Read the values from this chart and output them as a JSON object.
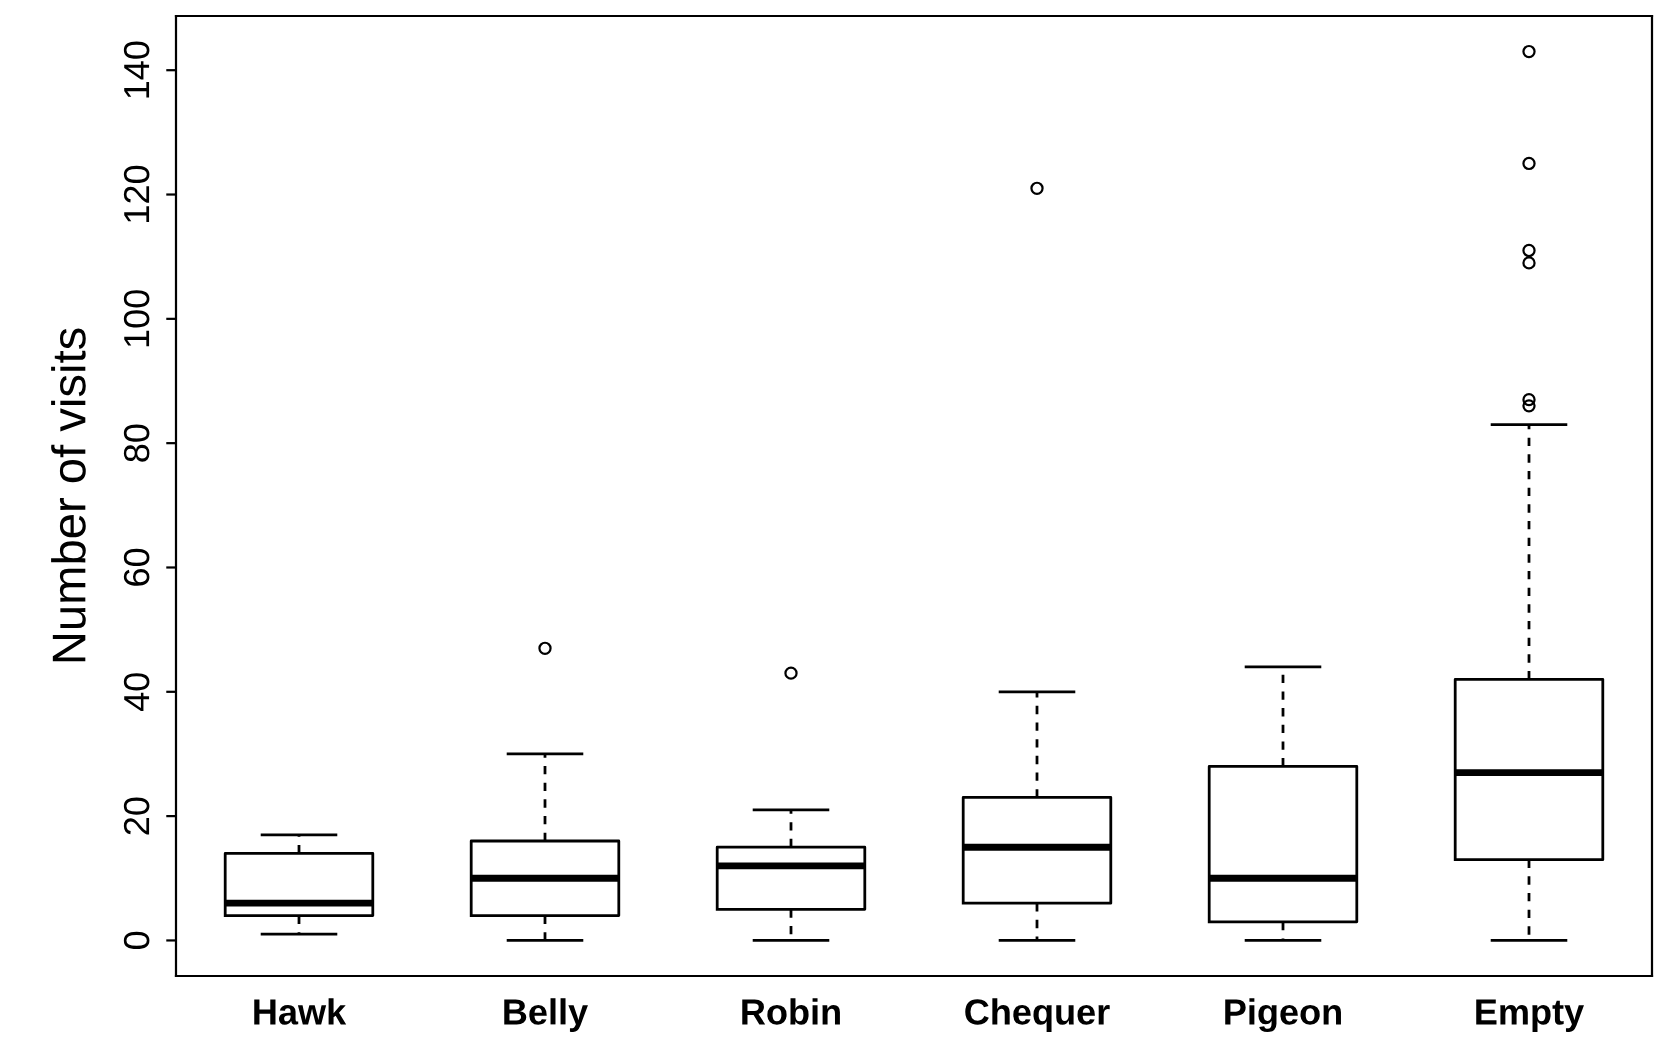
{
  "chart_data": {
    "type": "box",
    "ylabel": "Number of visits",
    "categories": [
      "Hawk",
      "Belly",
      "Robin",
      "Chequer",
      "Pigeon",
      "Empty"
    ],
    "boxes": [
      {
        "low": 1,
        "q1": 4,
        "median": 6,
        "q3": 14,
        "high": 17
      },
      {
        "low": 0,
        "q1": 4,
        "median": 10,
        "q3": 16,
        "high": 30,
        "outliers": [
          47
        ]
      },
      {
        "low": 0,
        "q1": 5,
        "median": 12,
        "q3": 15,
        "high": 21,
        "outliers": [
          43
        ]
      },
      {
        "low": 0,
        "q1": 6,
        "median": 15,
        "q3": 23,
        "high": 40,
        "outliers": [
          121
        ]
      },
      {
        "low": 0,
        "q1": 3,
        "median": 10,
        "q3": 28,
        "high": 44
      },
      {
        "low": 0,
        "q1": 13,
        "median": 27,
        "q3": 42,
        "high": 83,
        "outliers": [
          86,
          87,
          109,
          111,
          125,
          143
        ]
      }
    ],
    "ylim": [
      -5.72,
      148.72
    ],
    "yticks": [
      0,
      20,
      40,
      60,
      80,
      100,
      120,
      140
    ],
    "grid": false,
    "color": "#000000"
  }
}
